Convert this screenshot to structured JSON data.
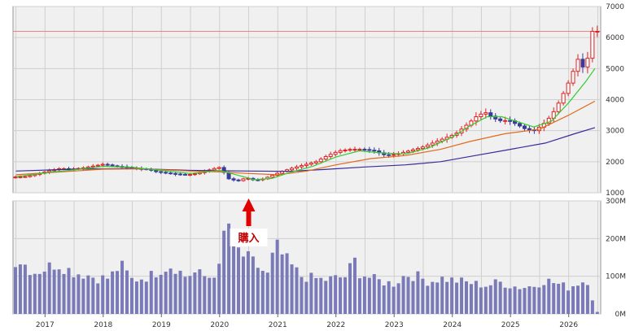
{
  "chart_data": {
    "type": "candlestick_with_volume",
    "years": [
      "2017",
      "2018",
      "2019",
      "2020",
      "2021",
      "2022",
      "2023",
      "2024",
      "2025",
      "2026"
    ],
    "price_axis": {
      "ticks": [
        "1000",
        "2000",
        "3000",
        "4000",
        "5000",
        "6000",
        "7000"
      ],
      "ylim": [
        1000,
        7000
      ]
    },
    "volume_axis": {
      "ticks": [
        "0M",
        "100M",
        "200M",
        "300M"
      ],
      "ylim": [
        0,
        300
      ]
    },
    "current_price_line": 6200,
    "annotation": {
      "label": "購入",
      "date": 2020.5
    },
    "colors": {
      "up": "#e02020",
      "down": "#3a3a9a",
      "ma_short": "#33cc33",
      "ma_mid": "#e06a1a",
      "ma_long": "#3a2a9a",
      "volume": "#7a7ab8",
      "current_line": "#f08080",
      "arrow": "#e00000",
      "panel_bg": "#f0f0f0",
      "grid": "#cfcfcf"
    },
    "price_keypoints": [
      [
        2016.45,
        1500
      ],
      [
        2016.7,
        1520
      ],
      [
        2016.9,
        1600
      ],
      [
        2017.1,
        1700
      ],
      [
        2017.3,
        1780
      ],
      [
        2017.5,
        1760
      ],
      [
        2017.7,
        1800
      ],
      [
        2017.9,
        1870
      ],
      [
        2018.05,
        1920
      ],
      [
        2018.25,
        1850
      ],
      [
        2018.45,
        1820
      ],
      [
        2018.6,
        1780
      ],
      [
        2018.8,
        1760
      ],
      [
        2018.95,
        1680
      ],
      [
        2019.1,
        1640
      ],
      [
        2019.3,
        1600
      ],
      [
        2019.5,
        1580
      ],
      [
        2019.65,
        1620
      ],
      [
        2019.8,
        1700
      ],
      [
        2019.95,
        1780
      ],
      [
        2020.05,
        1820
      ],
      [
        2020.2,
        1450
      ],
      [
        2020.35,
        1380
      ],
      [
        2020.5,
        1480
      ],
      [
        2020.65,
        1400
      ],
      [
        2020.8,
        1450
      ],
      [
        2020.95,
        1560
      ],
      [
        2021.1,
        1680
      ],
      [
        2021.3,
        1800
      ],
      [
        2021.5,
        1900
      ],
      [
        2021.7,
        2000
      ],
      [
        2021.9,
        2200
      ],
      [
        2022.1,
        2350
      ],
      [
        2022.3,
        2400
      ],
      [
        2022.5,
        2400
      ],
      [
        2022.7,
        2350
      ],
      [
        2022.9,
        2200
      ],
      [
        2023.1,
        2250
      ],
      [
        2023.3,
        2350
      ],
      [
        2023.5,
        2450
      ],
      [
        2023.7,
        2600
      ],
      [
        2023.9,
        2750
      ],
      [
        2024.1,
        2900
      ],
      [
        2024.3,
        3200
      ],
      [
        2024.45,
        3450
      ],
      [
        2024.6,
        3600
      ],
      [
        2024.75,
        3400
      ],
      [
        2024.9,
        3300
      ],
      [
        2025.0,
        3350
      ],
      [
        2025.15,
        3200
      ],
      [
        2025.3,
        3050
      ],
      [
        2025.45,
        3000
      ],
      [
        2025.6,
        3200
      ],
      [
        2025.75,
        3500
      ],
      [
        2025.9,
        4000
      ],
      [
        2026.05,
        4600
      ],
      [
        2026.2,
        5300
      ],
      [
        2026.3,
        5000
      ],
      [
        2026.38,
        5400
      ],
      [
        2026.45,
        6200
      ]
    ],
    "ma_short_keypoints": [
      [
        2016.5,
        1520
      ],
      [
        2017.0,
        1640
      ],
      [
        2017.5,
        1740
      ],
      [
        2018.0,
        1850
      ],
      [
        2018.5,
        1820
      ],
      [
        2019.0,
        1720
      ],
      [
        2019.5,
        1620
      ],
      [
        2020.0,
        1720
      ],
      [
        2020.3,
        1570
      ],
      [
        2020.6,
        1420
      ],
      [
        2020.9,
        1460
      ],
      [
        2021.2,
        1650
      ],
      [
        2021.6,
        1850
      ],
      [
        2022.0,
        2150
      ],
      [
        2022.4,
        2350
      ],
      [
        2022.8,
        2280
      ],
      [
        2023.2,
        2250
      ],
      [
        2023.6,
        2450
      ],
      [
        2024.0,
        2800
      ],
      [
        2024.3,
        3150
      ],
      [
        2024.6,
        3450
      ],
      [
        2024.85,
        3450
      ],
      [
        2025.1,
        3300
      ],
      [
        2025.4,
        3120
      ],
      [
        2025.7,
        3300
      ],
      [
        2026.0,
        3900
      ],
      [
        2026.3,
        4600
      ],
      [
        2026.45,
        5000
      ]
    ],
    "ma_mid_keypoints": [
      [
        2016.5,
        1580
      ],
      [
        2017.5,
        1700
      ],
      [
        2018.0,
        1760
      ],
      [
        2018.7,
        1770
      ],
      [
        2019.5,
        1700
      ],
      [
        2020.0,
        1670
      ],
      [
        2020.5,
        1620
      ],
      [
        2021.0,
        1580
      ],
      [
        2021.5,
        1700
      ],
      [
        2022.0,
        1900
      ],
      [
        2022.6,
        2100
      ],
      [
        2023.2,
        2200
      ],
      [
        2023.8,
        2400
      ],
      [
        2024.3,
        2650
      ],
      [
        2024.9,
        2900
      ],
      [
        2025.5,
        3050
      ],
      [
        2026.0,
        3500
      ],
      [
        2026.45,
        3950
      ]
    ],
    "ma_long_keypoints": [
      [
        2016.5,
        1700
      ],
      [
        2017.5,
        1760
      ],
      [
        2018.5,
        1780
      ],
      [
        2019.5,
        1720
      ],
      [
        2020.5,
        1700
      ],
      [
        2021.2,
        1690
      ],
      [
        2021.8,
        1750
      ],
      [
        2022.5,
        1830
      ],
      [
        2023.2,
        1900
      ],
      [
        2023.8,
        2000
      ],
      [
        2024.4,
        2200
      ],
      [
        2025.0,
        2400
      ],
      [
        2025.6,
        2600
      ],
      [
        2026.1,
        2900
      ],
      [
        2026.45,
        3100
      ]
    ],
    "volume_keypoints": [
      [
        2016.45,
        145
      ],
      [
        2016.6,
        140
      ],
      [
        2016.8,
        110
      ],
      [
        2017.0,
        120
      ],
      [
        2017.2,
        135
      ],
      [
        2017.5,
        110
      ],
      [
        2017.7,
        105
      ],
      [
        2017.9,
        95
      ],
      [
        2018.1,
        95
      ],
      [
        2018.3,
        130
      ],
      [
        2018.5,
        90
      ],
      [
        2018.8,
        100
      ],
      [
        2019.0,
        120
      ],
      [
        2019.2,
        130
      ],
      [
        2019.4,
        100
      ],
      [
        2019.6,
        110
      ],
      [
        2019.8,
        95
      ],
      [
        2020.0,
        120
      ],
      [
        2020.12,
        265
      ],
      [
        2020.25,
        180
      ],
      [
        2020.4,
        155
      ],
      [
        2020.55,
        140
      ],
      [
        2020.7,
        120
      ],
      [
        2020.85,
        100
      ],
      [
        2020.95,
        185
      ],
      [
        2021.1,
        150
      ],
      [
        2021.25,
        125
      ],
      [
        2021.4,
        100
      ],
      [
        2021.6,
        95
      ],
      [
        2021.8,
        90
      ],
      [
        2022.0,
        95
      ],
      [
        2022.2,
        100
      ],
      [
        2022.3,
        150
      ],
      [
        2022.4,
        110
      ],
      [
        2022.6,
        95
      ],
      [
        2022.8,
        85
      ],
      [
        2023.0,
        80
      ],
      [
        2023.2,
        105
      ],
      [
        2023.4,
        100
      ],
      [
        2023.6,
        85
      ],
      [
        2023.8,
        95
      ],
      [
        2024.0,
        90
      ],
      [
        2024.2,
        85
      ],
      [
        2024.4,
        80
      ],
      [
        2024.6,
        75
      ],
      [
        2024.8,
        85
      ],
      [
        2025.0,
        75
      ],
      [
        2025.2,
        70
      ],
      [
        2025.4,
        75
      ],
      [
        2025.6,
        90
      ],
      [
        2025.8,
        80
      ],
      [
        2026.0,
        70
      ],
      [
        2026.2,
        85
      ],
      [
        2026.35,
        90
      ],
      [
        2026.45,
        5
      ]
    ]
  }
}
